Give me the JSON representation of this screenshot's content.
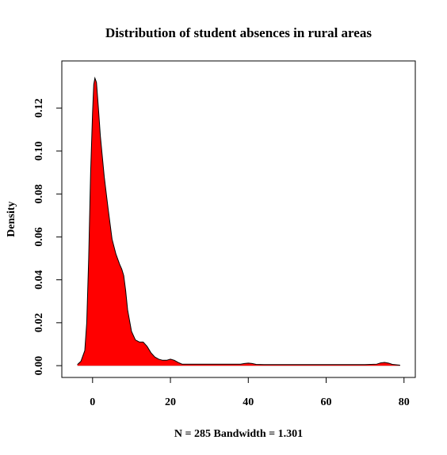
{
  "chart_data": {
    "type": "area",
    "title": "Distribution of student absences in rural areas",
    "xlabel": "N = 285   Bandwidth = 1.301",
    "ylabel": "Density",
    "xlim": [
      -7.9,
      82.9
    ],
    "ylim": [
      -0.0055,
      0.142
    ],
    "xticks": [
      0,
      20,
      40,
      60,
      80
    ],
    "yticks": [
      0.0,
      0.02,
      0.04,
      0.06,
      0.08,
      0.1,
      0.12
    ],
    "ytick_labels": [
      "0.00",
      "0.02",
      "0.04",
      "0.06",
      "0.08",
      "0.10",
      "0.12"
    ],
    "fill_color": "#ff0000",
    "line_color": "#000000",
    "baseline_color": "#bebebe",
    "grid": false,
    "series": [
      {
        "x": [
          -3.9,
          -3.0,
          -2.0,
          -1.5,
          -1.0,
          -0.5,
          0.0,
          0.3,
          0.6,
          1.0,
          1.5,
          2.0,
          3.0,
          4.0,
          5.0,
          6.0,
          7.0,
          7.5,
          8.0,
          8.5,
          9.0,
          10.0,
          11.0,
          12.0,
          13.0,
          14.0,
          15.0,
          16.0,
          17.0,
          18.0,
          19.0,
          20.0,
          21.0,
          22.0,
          23.0,
          25.0,
          28.0,
          32.0,
          35.0,
          38.0,
          39.0,
          40.0,
          41.0,
          42.0,
          44.0,
          50.0,
          55.0,
          60.0,
          65.0,
          70.0,
          73.0,
          74.0,
          75.0,
          76.0,
          77.0,
          79.0
        ],
        "y": [
          0.0005,
          0.002,
          0.007,
          0.02,
          0.05,
          0.09,
          0.118,
          0.131,
          0.134,
          0.132,
          0.12,
          0.107,
          0.088,
          0.073,
          0.059,
          0.052,
          0.047,
          0.045,
          0.042,
          0.035,
          0.026,
          0.016,
          0.012,
          0.011,
          0.011,
          0.009,
          0.006,
          0.004,
          0.003,
          0.0025,
          0.0025,
          0.003,
          0.0025,
          0.0015,
          0.0007,
          0.0007,
          0.0007,
          0.0007,
          0.0007,
          0.0007,
          0.001,
          0.0012,
          0.001,
          0.0006,
          0.0005,
          0.0005,
          0.0005,
          0.0005,
          0.0005,
          0.0005,
          0.0007,
          0.0013,
          0.0015,
          0.0012,
          0.0006,
          0.0002
        ]
      }
    ]
  }
}
